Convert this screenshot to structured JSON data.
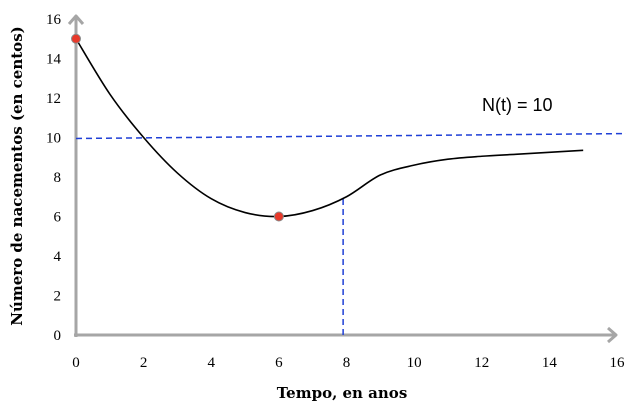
{
  "chart_data": {
    "type": "line",
    "xlabel": "Tempo, en anos",
    "ylabel": "Número de nacementos (en centos)",
    "xlim": [
      0,
      16
    ],
    "ylim": [
      0,
      16
    ],
    "x_ticks": [
      "0",
      "2",
      "4",
      "6",
      "8",
      "10",
      "12",
      "14",
      "16"
    ],
    "y_ticks": [
      "0",
      "2",
      "4",
      "6",
      "8",
      "10",
      "12",
      "14",
      "16"
    ],
    "grid": false,
    "series": [
      {
        "x": [
          0,
          1,
          2,
          3,
          4,
          5,
          6,
          7,
          8,
          9,
          10,
          11,
          12,
          13,
          14,
          15
        ],
        "y": [
          15,
          12.2,
          10.0,
          8.2,
          6.9,
          6.2,
          6.0,
          6.3,
          7.0,
          8.1,
          8.6,
          8.9,
          9.05,
          9.15,
          9.25,
          9.35
        ]
      }
    ],
    "highlighted_points": [
      {
        "x": 0,
        "y": 15
      },
      {
        "x": 6,
        "y": 6
      }
    ],
    "reference_lines": [
      {
        "orientation": "horizontal",
        "label": "N(t) = 10",
        "from": [
          0,
          9.95
        ],
        "to": [
          16,
          10.2
        ]
      },
      {
        "orientation": "vertical",
        "x": 7.9,
        "from_y": 0,
        "to_y": 7.0
      }
    ],
    "annotations": [
      "N(t) = 10"
    ],
    "colors": {
      "curve": "#000000",
      "dashed": "#1f3fd6",
      "point": "#e8392a",
      "axis": "#a6a6a6"
    }
  }
}
